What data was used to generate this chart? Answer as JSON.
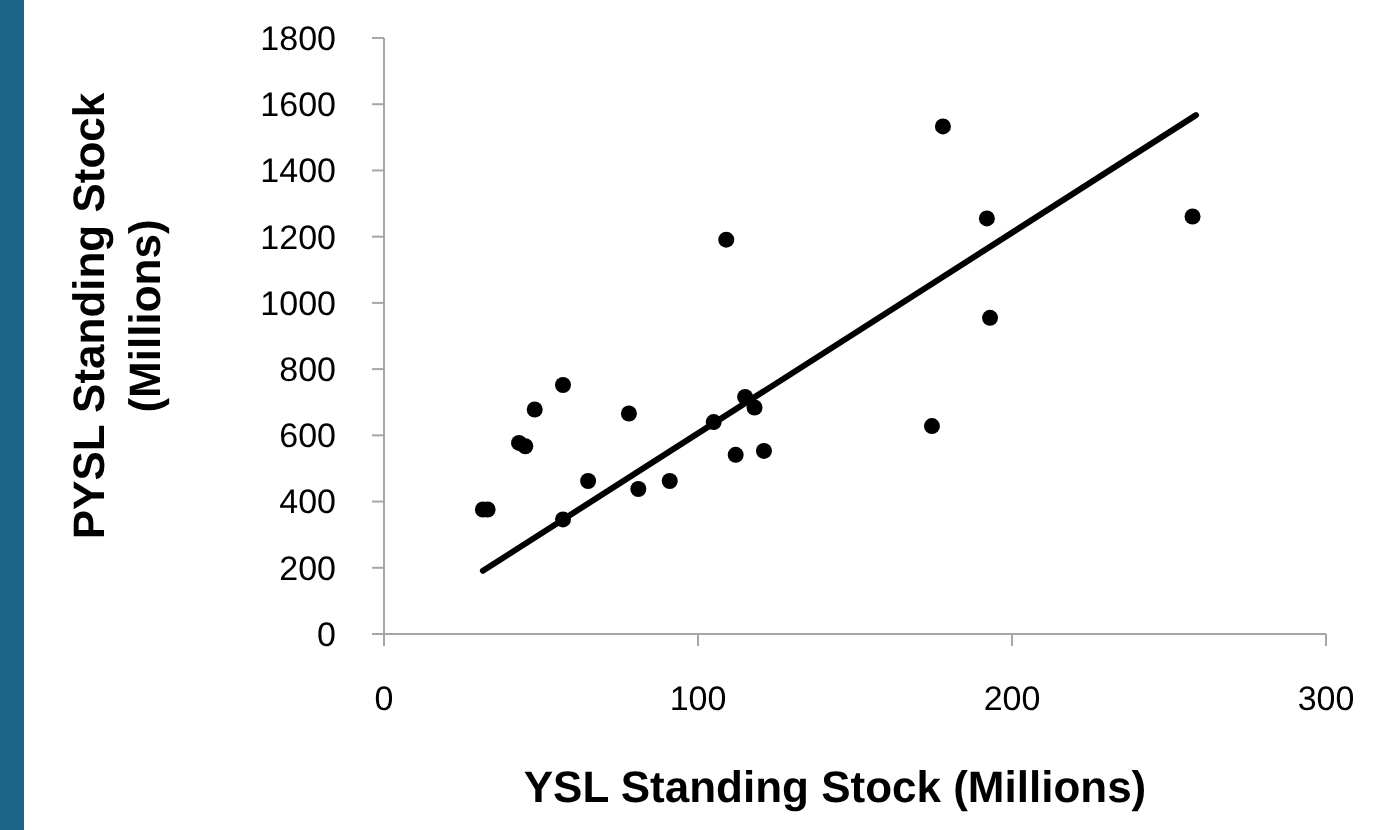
{
  "chart_data": {
    "type": "scatter",
    "xlabel": "YSL Standing Stock (Millions)",
    "ylabel": "PYSL Standing Stock\n(Millions)",
    "xlim": [
      0,
      300
    ],
    "xticks": [
      0,
      100,
      200,
      300
    ],
    "ylim": [
      0,
      1800
    ],
    "yticks": [
      0,
      200,
      400,
      600,
      800,
      1000,
      1200,
      1400,
      1600,
      1800
    ],
    "grid": false,
    "series": [
      {
        "marker": "circle",
        "color": "#000000",
        "x": [
          31.5,
          33,
          43,
          45,
          48,
          57,
          57,
          65,
          78,
          81,
          91,
          105,
          109,
          112,
          115,
          118,
          121,
          174.5,
          178,
          192,
          193,
          257.5
        ],
        "values": [
          376,
          376,
          577,
          567,
          678,
          752,
          346,
          462,
          666,
          438,
          462,
          640,
          1191,
          541,
          716,
          684,
          553,
          628,
          1533,
          1255,
          955,
          1261
        ]
      },
      {
        "type": "line",
        "color": "#000000",
        "x": [
          31.5,
          258.6
        ],
        "values": [
          191,
          1567
        ],
        "line_style": "solid"
      }
    ]
  }
}
